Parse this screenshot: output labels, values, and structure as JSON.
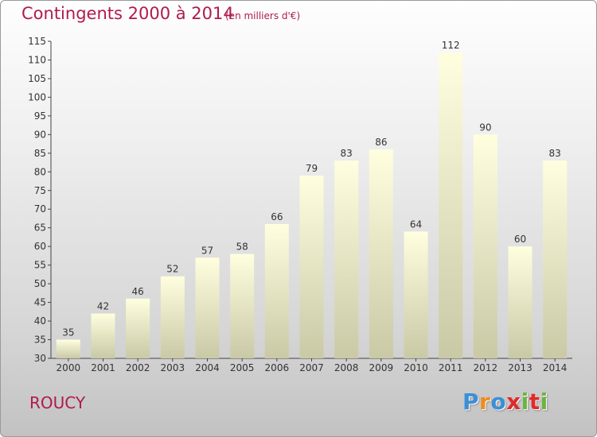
{
  "header": {
    "title": "Contingents 2000 à 2014",
    "unit": "(en milliers d'€)"
  },
  "footer": {
    "commune": "ROUCY",
    "logo_letters": [
      "P",
      "r",
      "o",
      "x",
      "i",
      "t",
      "i"
    ],
    "logo_colors": [
      "#3b8fd6",
      "#f08a1c",
      "#3b8fd6",
      "#e02a2a",
      "#6cb33e",
      "#e02a2a",
      "#6cb33e"
    ]
  },
  "colors": {
    "title": "#b01b4a",
    "bar_top": "#ffffe0",
    "bar_bottom": "#c9c9a6"
  },
  "chart_data": {
    "type": "bar",
    "title": "Contingents 2000 à 2014",
    "ylabel": "",
    "xlabel": "",
    "categories": [
      "2000",
      "2001",
      "2002",
      "2003",
      "2004",
      "2005",
      "2006",
      "2007",
      "2008",
      "2009",
      "2010",
      "2011",
      "2012",
      "2013",
      "2014"
    ],
    "values": [
      35,
      42,
      46,
      52,
      57,
      58,
      66,
      79,
      83,
      86,
      64,
      112,
      90,
      60,
      83
    ],
    "ylim": [
      30,
      115
    ],
    "yticks": [
      30,
      35,
      40,
      45,
      50,
      55,
      60,
      65,
      70,
      75,
      80,
      85,
      90,
      95,
      100,
      105,
      110,
      115
    ],
    "grid": false,
    "data_labels": true
  }
}
